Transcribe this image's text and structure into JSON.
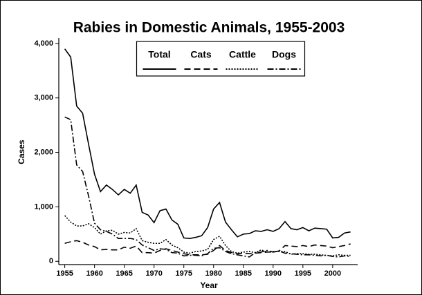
{
  "chart_data": {
    "type": "line",
    "title": "Rabies in Domestic Animals, 1955-2003",
    "x_label": "Year",
    "y_label": "Cases",
    "x": [
      1955,
      1956,
      1957,
      1958,
      1959,
      1960,
      1961,
      1962,
      1963,
      1964,
      1965,
      1966,
      1967,
      1968,
      1969,
      1970,
      1971,
      1972,
      1973,
      1974,
      1975,
      1976,
      1977,
      1978,
      1979,
      1980,
      1981,
      1982,
      1983,
      1984,
      1985,
      1986,
      1987,
      1988,
      1989,
      1990,
      1991,
      1992,
      1993,
      1994,
      1995,
      1996,
      1997,
      1998,
      1999,
      2000,
      2001,
      2002,
      2003
    ],
    "series": [
      {
        "name": "Total",
        "color": "#000000",
        "dash": "solid",
        "values": [
          3900,
          3750,
          2850,
          2720,
          2150,
          1600,
          1280,
          1400,
          1320,
          1220,
          1320,
          1250,
          1400,
          900,
          850,
          710,
          930,
          960,
          760,
          680,
          430,
          420,
          440,
          470,
          620,
          960,
          1080,
          720,
          580,
          450,
          500,
          510,
          560,
          550,
          580,
          550,
          600,
          730,
          600,
          580,
          620,
          560,
          610,
          600,
          590,
          430,
          440,
          520,
          540
        ]
      },
      {
        "name": "Cats",
        "color": "#000000",
        "dash": "dashed",
        "values": [
          330,
          360,
          380,
          350,
          300,
          270,
          210,
          220,
          210,
          210,
          260,
          240,
          280,
          160,
          160,
          150,
          200,
          230,
          200,
          170,
          140,
          120,
          120,
          120,
          130,
          200,
          290,
          200,
          160,
          140,
          150,
          140,
          150,
          160,
          170,
          170,
          190,
          290,
          280,
          270,
          290,
          270,
          300,
          290,
          280,
          250,
          270,
          290,
          320
        ]
      },
      {
        "name": "Cattle",
        "color": "#000000",
        "dash": "dotted",
        "values": [
          840,
          720,
          650,
          650,
          690,
          620,
          500,
          560,
          570,
          500,
          530,
          520,
          600,
          380,
          350,
          330,
          330,
          400,
          300,
          250,
          170,
          150,
          180,
          190,
          220,
          400,
          460,
          290,
          180,
          150,
          170,
          180,
          160,
          210,
          170,
          180,
          180,
          180,
          130,
          140,
          140,
          130,
          130,
          120,
          110,
          100,
          120,
          110,
          110
        ]
      },
      {
        "name": "Dogs",
        "color": "#000000",
        "dash": "dashdot",
        "values": [
          2650,
          2600,
          1770,
          1650,
          1200,
          700,
          580,
          550,
          500,
          420,
          420,
          420,
          400,
          300,
          250,
          200,
          230,
          220,
          160,
          150,
          100,
          110,
          110,
          100,
          140,
          240,
          250,
          180,
          140,
          120,
          100,
          80,
          160,
          170,
          200,
          170,
          190,
          150,
          140,
          130,
          120,
          120,
          110,
          100,
          110,
          90,
          80,
          100,
          90
        ]
      }
    ],
    "xlim": [
      1954,
      2004.2
    ],
    "xticks": [
      1955,
      1960,
      1965,
      1970,
      1975,
      1980,
      1985,
      1990,
      1995,
      2000
    ],
    "ylim": [
      -60,
      4100
    ],
    "yticks": [
      0,
      {
        "value": 1000,
        "label": "1,000"
      },
      {
        "value": 2000,
        "label": "2,000"
      },
      {
        "value": 3000,
        "label": "3,000"
      },
      {
        "value": 4000,
        "label": "4,000"
      }
    ],
    "grid": false,
    "legend": "upper center"
  }
}
